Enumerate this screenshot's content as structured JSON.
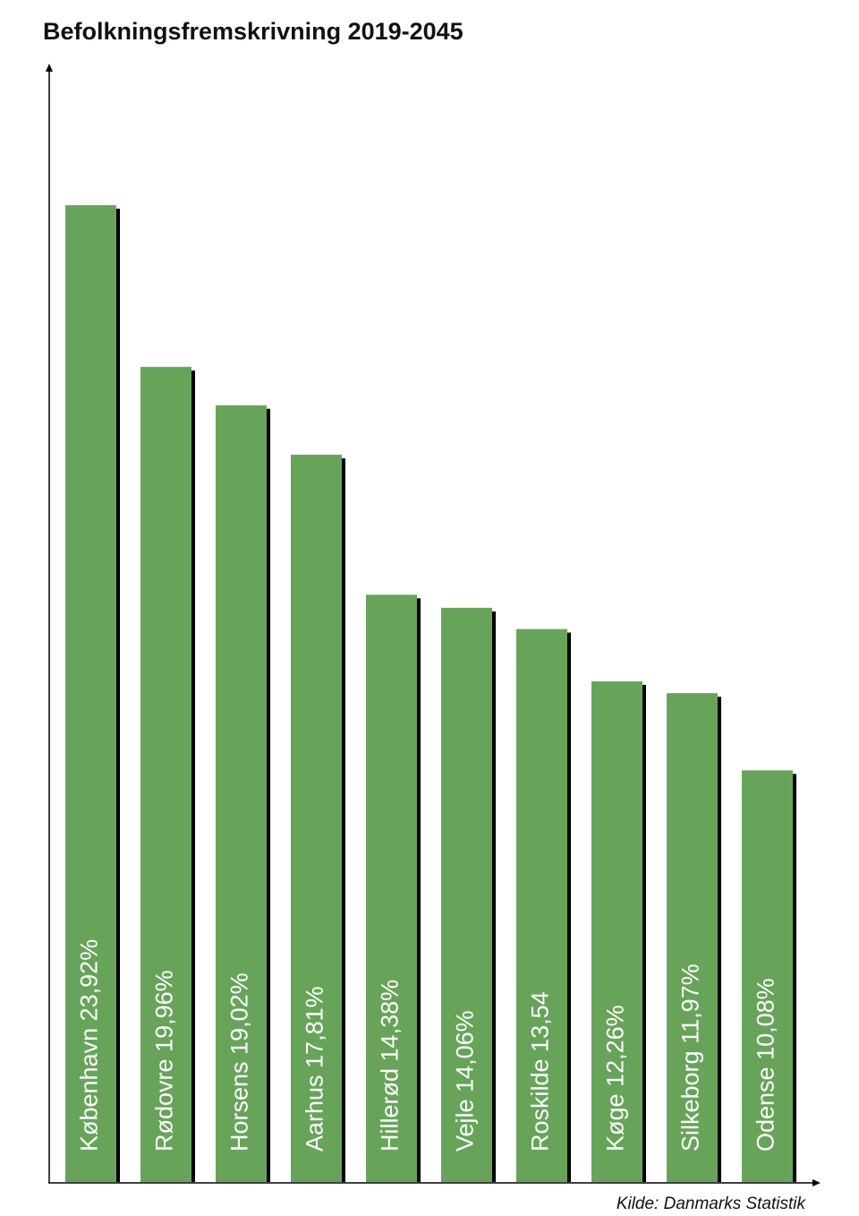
{
  "chart_data": {
    "type": "bar",
    "title": "Befolkningsfremskrivning 2019-2045",
    "source": "Kilde: Danmarks Statistik",
    "categories": [
      "København",
      "Rødovre",
      "Horsens",
      "Aarhus",
      "Hillerød",
      "Vejle",
      "Roskilde",
      "Køge",
      "Silkeborg",
      "Odense"
    ],
    "values": [
      23.92,
      19.96,
      19.02,
      17.81,
      14.38,
      14.06,
      13.54,
      12.26,
      11.97,
      10.08
    ],
    "value_labels": [
      "23,92%",
      "19,96%",
      "19,02%",
      "17,81%",
      "14,38%",
      "14,06%",
      "13,54",
      "12,26%",
      "11,97%",
      "10,08%"
    ],
    "color": "#67a45a",
    "ylim": [
      0,
      27.3
    ]
  }
}
